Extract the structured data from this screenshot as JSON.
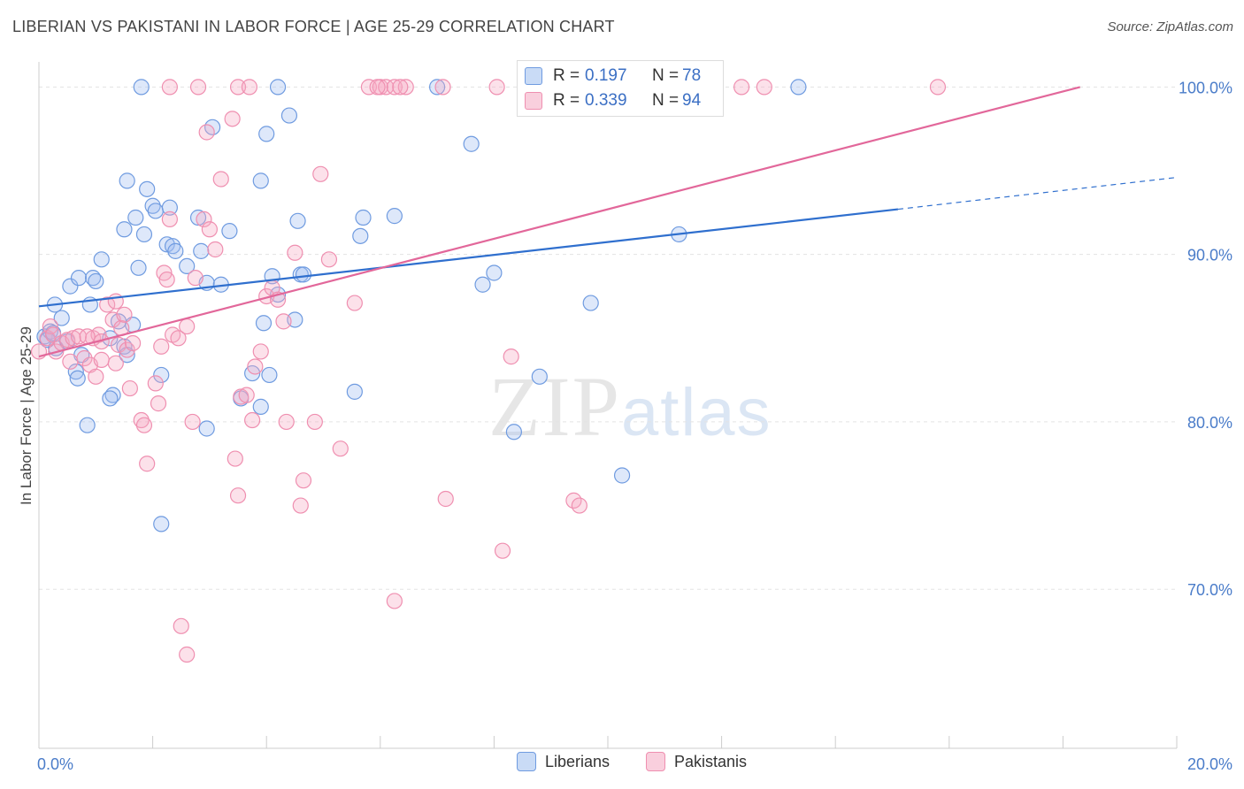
{
  "header": {
    "title": "LIBERIAN VS PAKISTANI IN LABOR FORCE | AGE 25-29 CORRELATION CHART",
    "source": "Source: ZipAtlas.com"
  },
  "watermark": {
    "zip": "ZIP",
    "atlas": "atlas"
  },
  "stats": {
    "rows": [
      {
        "r_label": "R =",
        "r_value": "0.197",
        "n_label": "N =",
        "n_value": "78",
        "color": "#6f9be0"
      },
      {
        "r_label": "R =",
        "r_value": "0.339",
        "n_label": "N =",
        "n_value": "94",
        "color": "#ef8fb0"
      }
    ]
  },
  "legend": {
    "items": [
      {
        "label": "Liberians",
        "color": "#6f9be0"
      },
      {
        "label": "Pakistanis",
        "color": "#ef8fb0"
      }
    ]
  },
  "chart_data": {
    "type": "scatter",
    "title": "LIBERIAN VS PAKISTANI IN LABOR FORCE | AGE 25-29 CORRELATION CHART",
    "xlabel": "",
    "ylabel": "In Labor Force | Age 25-29",
    "xlim": [
      0,
      20
    ],
    "ylim": [
      60.5,
      101.5
    ],
    "x_tick_labels": [
      "0.0%",
      "20.0%"
    ],
    "y_ticks": [
      70,
      80,
      90,
      100
    ],
    "y_tick_labels": [
      "70.0%",
      "80.0%",
      "90.0%",
      "100.0%"
    ],
    "grid": "horizontal dashed",
    "legend_placement": "bottom-center",
    "series": [
      {
        "name": "Liberians",
        "color": "#6f9be0",
        "trend": {
          "x0": 0,
          "y0": 86.9,
          "x1": 15.1,
          "y1": 92.7,
          "x_dashed_end": 20,
          "y_dashed_end": 94.6
        },
        "points": [
          [
            0.1,
            85.1
          ],
          [
            0.2,
            85.4
          ],
          [
            0.15,
            84.9
          ],
          [
            0.25,
            85.3
          ],
          [
            0.3,
            84.4
          ],
          [
            0.28,
            87.0
          ],
          [
            0.4,
            86.2
          ],
          [
            0.5,
            84.8
          ],
          [
            0.55,
            88.1
          ],
          [
            0.7,
            88.6
          ],
          [
            0.9,
            87.0
          ],
          [
            0.95,
            88.6
          ],
          [
            1.0,
            88.4
          ],
          [
            1.1,
            89.7
          ],
          [
            1.25,
            85.0
          ],
          [
            1.4,
            86.0
          ],
          [
            1.5,
            84.5
          ],
          [
            1.55,
            84.0
          ],
          [
            1.65,
            85.8
          ],
          [
            1.3,
            81.6
          ],
          [
            1.25,
            81.4
          ],
          [
            0.65,
            83.0
          ],
          [
            0.68,
            82.6
          ],
          [
            0.85,
            79.8
          ],
          [
            0.75,
            84.0
          ],
          [
            1.5,
            91.5
          ],
          [
            1.55,
            94.4
          ],
          [
            1.7,
            92.2
          ],
          [
            1.75,
            89.2
          ],
          [
            1.85,
            91.2
          ],
          [
            1.9,
            93.9
          ],
          [
            2.0,
            92.9
          ],
          [
            2.05,
            92.6
          ],
          [
            2.3,
            92.8
          ],
          [
            2.25,
            90.6
          ],
          [
            2.35,
            90.5
          ],
          [
            2.4,
            90.2
          ],
          [
            2.6,
            89.3
          ],
          [
            2.8,
            92.2
          ],
          [
            2.85,
            90.2
          ],
          [
            2.95,
            88.3
          ],
          [
            3.05,
            97.6
          ],
          [
            3.2,
            88.2
          ],
          [
            3.35,
            91.4
          ],
          [
            3.9,
            94.4
          ],
          [
            3.95,
            85.9
          ],
          [
            4.0,
            97.2
          ],
          [
            4.1,
            88.7
          ],
          [
            4.2,
            87.6
          ],
          [
            4.4,
            98.3
          ],
          [
            4.5,
            86.1
          ],
          [
            4.55,
            92.0
          ],
          [
            4.6,
            88.8
          ],
          [
            4.65,
            88.8
          ],
          [
            5.65,
            91.1
          ],
          [
            5.7,
            92.2
          ],
          [
            6.25,
            92.3
          ],
          [
            7.6,
            96.6
          ],
          [
            7.8,
            88.2
          ],
          [
            8.0,
            88.9
          ],
          [
            8.35,
            79.4
          ],
          [
            8.8,
            82.7
          ],
          [
            9.7,
            87.1
          ],
          [
            10.25,
            76.8
          ],
          [
            11.25,
            91.2
          ],
          [
            2.15,
            82.8
          ],
          [
            2.95,
            79.6
          ],
          [
            3.55,
            81.4
          ],
          [
            3.75,
            82.9
          ],
          [
            3.9,
            80.9
          ],
          [
            4.05,
            82.8
          ],
          [
            5.55,
            81.8
          ],
          [
            2.15,
            73.9
          ],
          [
            1.8,
            100.0
          ],
          [
            4.2,
            100.0
          ],
          [
            7.0,
            100.0
          ],
          [
            13.35,
            100.0
          ]
        ]
      },
      {
        "name": "Pakistanis",
        "color": "#ef8fb0",
        "trend": {
          "x0": 0,
          "y0": 83.9,
          "x1": 18.3,
          "y1": 100.0
        },
        "points": [
          [
            0.0,
            84.2
          ],
          [
            0.15,
            85.0
          ],
          [
            0.2,
            85.7
          ],
          [
            0.25,
            85.2
          ],
          [
            0.3,
            84.2
          ],
          [
            0.4,
            84.7
          ],
          [
            0.5,
            84.9
          ],
          [
            0.55,
            83.6
          ],
          [
            0.6,
            85.0
          ],
          [
            0.7,
            85.1
          ],
          [
            0.8,
            83.8
          ],
          [
            0.9,
            83.4
          ],
          [
            0.95,
            85.0
          ],
          [
            1.0,
            82.7
          ],
          [
            1.05,
            85.2
          ],
          [
            1.1,
            84.8
          ],
          [
            1.2,
            87.0
          ],
          [
            1.3,
            86.1
          ],
          [
            1.35,
            87.2
          ],
          [
            1.4,
            84.6
          ],
          [
            1.45,
            85.6
          ],
          [
            1.5,
            86.4
          ],
          [
            1.55,
            84.3
          ],
          [
            1.6,
            82.0
          ],
          [
            1.65,
            84.7
          ],
          [
            1.8,
            80.1
          ],
          [
            1.85,
            79.8
          ],
          [
            1.9,
            77.5
          ],
          [
            2.05,
            82.3
          ],
          [
            2.1,
            81.1
          ],
          [
            2.15,
            84.5
          ],
          [
            2.2,
            88.9
          ],
          [
            2.25,
            88.5
          ],
          [
            2.3,
            92.1
          ],
          [
            2.35,
            85.2
          ],
          [
            2.45,
            85.0
          ],
          [
            2.6,
            85.7
          ],
          [
            2.7,
            80.0
          ],
          [
            2.75,
            88.6
          ],
          [
            2.9,
            92.1
          ],
          [
            3.0,
            91.5
          ],
          [
            3.1,
            90.3
          ],
          [
            3.2,
            94.5
          ],
          [
            3.4,
            98.1
          ],
          [
            3.45,
            77.8
          ],
          [
            3.5,
            75.6
          ],
          [
            3.55,
            81.5
          ],
          [
            3.65,
            81.6
          ],
          [
            3.75,
            80.1
          ],
          [
            3.8,
            83.3
          ],
          [
            3.9,
            84.2
          ],
          [
            4.0,
            87.5
          ],
          [
            4.1,
            88.0
          ],
          [
            4.2,
            87.3
          ],
          [
            4.3,
            86.0
          ],
          [
            4.35,
            80.0
          ],
          [
            4.5,
            90.1
          ],
          [
            4.6,
            75.0
          ],
          [
            4.65,
            76.5
          ],
          [
            4.85,
            80.0
          ],
          [
            4.95,
            94.8
          ],
          [
            5.1,
            89.7
          ],
          [
            5.3,
            78.4
          ],
          [
            5.55,
            87.1
          ],
          [
            7.15,
            75.4
          ],
          [
            8.15,
            72.3
          ],
          [
            8.3,
            83.9
          ],
          [
            9.4,
            75.3
          ],
          [
            9.5,
            75.0
          ],
          [
            6.25,
            69.3
          ],
          [
            2.5,
            67.8
          ],
          [
            2.6,
            66.1
          ],
          [
            1.35,
            83.5
          ],
          [
            2.95,
            97.3
          ],
          [
            1.1,
            83.7
          ],
          [
            0.85,
            85.1
          ],
          [
            2.3,
            100.0
          ],
          [
            2.8,
            100.0
          ],
          [
            3.5,
            100.0
          ],
          [
            3.7,
            100.0
          ],
          [
            5.8,
            100.0
          ],
          [
            6.0,
            100.0
          ],
          [
            6.1,
            100.0
          ],
          [
            6.25,
            100.0
          ],
          [
            6.45,
            100.0
          ],
          [
            7.1,
            100.0
          ],
          [
            8.05,
            100.0
          ],
          [
            9.5,
            100.0
          ],
          [
            11.6,
            100.0
          ],
          [
            12.35,
            100.0
          ],
          [
            12.75,
            100.0
          ],
          [
            15.8,
            100.0
          ],
          [
            6.35,
            100.0
          ],
          [
            5.95,
            100.0
          ]
        ]
      }
    ]
  }
}
